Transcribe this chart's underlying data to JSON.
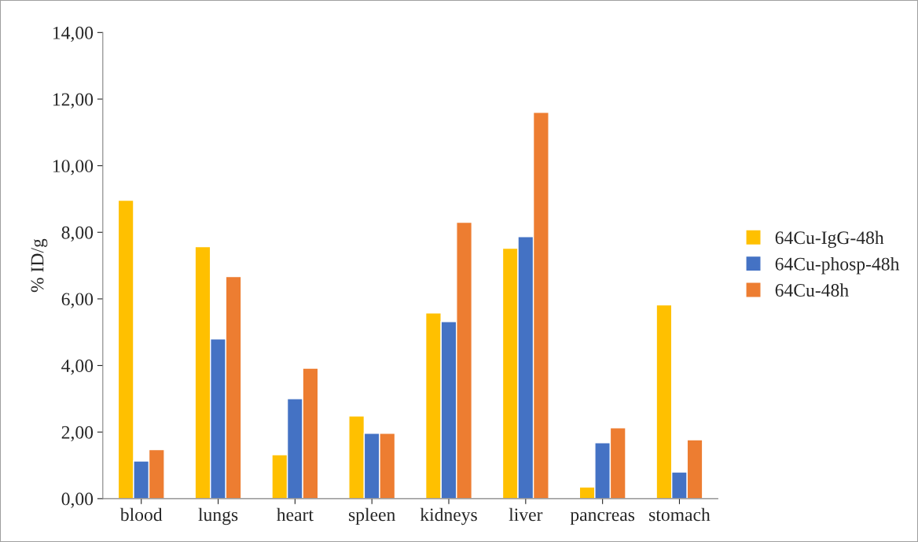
{
  "chart_data": {
    "type": "bar",
    "ylabel": "% ID/g",
    "categories": [
      "blood",
      "lungs",
      "heart",
      "spleen",
      "kidneys",
      "liver",
      "pancreas",
      "stomach"
    ],
    "series": [
      {
        "name": "64Cu-IgG-48h",
        "color": "#ffc000",
        "values": [
          8.96,
          7.57,
          1.32,
          2.48,
          5.58,
          7.52,
          0.35,
          5.82
        ]
      },
      {
        "name": "64Cu-phosp-48h",
        "color": "#4472c4",
        "values": [
          1.13,
          4.8,
          3.0,
          1.96,
          5.32,
          7.87,
          1.68,
          0.8
        ]
      },
      {
        "name": "64Cu-48h",
        "color": "#ed7d31",
        "values": [
          1.47,
          6.67,
          3.92,
          1.96,
          8.3,
          11.6,
          2.13,
          1.77
        ]
      }
    ],
    "ylim": [
      0,
      14
    ],
    "yticks": [
      {
        "value": 0,
        "label": "0,00"
      },
      {
        "value": 2,
        "label": "2,00"
      },
      {
        "value": 4,
        "label": "4,00"
      },
      {
        "value": 6,
        "label": "6,00"
      },
      {
        "value": 8,
        "label": "8,00"
      },
      {
        "value": 10,
        "label": "10,00"
      },
      {
        "value": 12,
        "label": "12,00"
      },
      {
        "value": 14,
        "label": "14,00"
      }
    ],
    "grid": false,
    "legend": "right"
  }
}
